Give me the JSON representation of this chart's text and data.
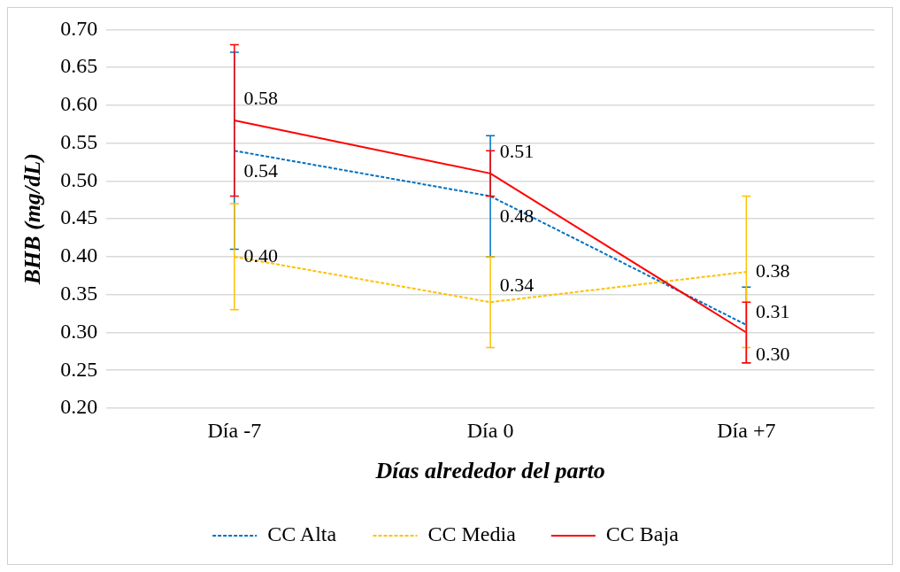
{
  "chart_data": {
    "type": "line",
    "xlabel": "Días alrededor del parto",
    "ylabel": "BHB (mg/dL)",
    "categories": [
      "Día -7",
      "Día 0",
      "Día +7"
    ],
    "series": [
      {
        "name": "CC Alta",
        "color": "#0070c0",
        "line_style": "dashed",
        "values": [
          0.54,
          0.48,
          0.31
        ],
        "value_labels": [
          "0.54",
          "0.48",
          "0.31"
        ],
        "errors": [
          0.13,
          0.08,
          0.05
        ]
      },
      {
        "name": "CC Media",
        "color": "#ffc000",
        "line_style": "dashed",
        "values": [
          0.4,
          0.34,
          0.38
        ],
        "value_labels": [
          "0.40",
          "0.34",
          "0.38"
        ],
        "errors": [
          [
            0.33,
            0.47
          ],
          [
            0.28,
            0.4
          ],
          [
            0.28,
            0.48
          ]
        ]
      },
      {
        "name": "CC Baja",
        "color": "#ff0000",
        "line_style": "solid",
        "values": [
          0.58,
          0.51,
          0.3
        ],
        "value_labels": [
          "0.58",
          "0.51",
          "0.30"
        ],
        "errors": [
          0.1,
          0.03,
          0.04
        ]
      }
    ],
    "ylim": [
      0.2,
      0.7
    ],
    "yticks": [
      {
        "value": 0.2,
        "label": "0.20"
      },
      {
        "value": 0.25,
        "label": "0.25"
      },
      {
        "value": 0.3,
        "label": "0.30"
      },
      {
        "value": 0.35,
        "label": "0.35"
      },
      {
        "value": 0.4,
        "label": "0.40"
      },
      {
        "value": 0.45,
        "label": "0.45"
      },
      {
        "value": 0.5,
        "label": "0.50"
      },
      {
        "value": 0.55,
        "label": "0.55"
      },
      {
        "value": 0.6,
        "label": "0.60"
      },
      {
        "value": 0.65,
        "label": "0.65"
      },
      {
        "value": 0.7,
        "label": "0.70"
      }
    ],
    "grid": "y",
    "legend": "bottom",
    "marker": "none"
  }
}
